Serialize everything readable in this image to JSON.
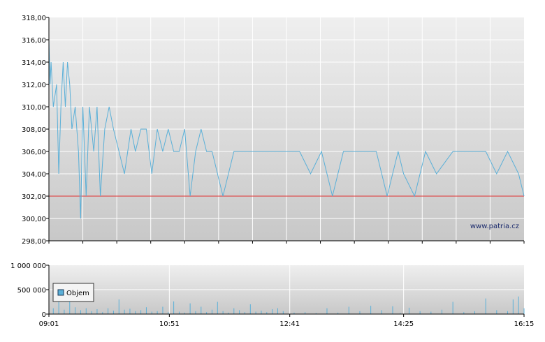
{
  "watermark": "www.patria.cz",
  "legend": {
    "label": "Objem"
  },
  "colors": {
    "price_line": "#5bb0d8",
    "reference_line": "#e03030",
    "volume_bar": "#5bb0d8",
    "grid": "#ffffff",
    "axis": "#000000"
  },
  "chart_data": [
    {
      "type": "line",
      "title": "",
      "xlabel": "",
      "ylabel": "",
      "ylim": [
        298,
        318
      ],
      "y_ticks": [
        "318,00",
        "316,00",
        "314,00",
        "312,00",
        "310,00",
        "308,00",
        "306,00",
        "304,00",
        "302,00",
        "300,00",
        "298,00"
      ],
      "reference_line": 302,
      "grid": true,
      "series": [
        {
          "x": [
            "09:01",
            "09:02",
            "09:03",
            "09:05",
            "09:08",
            "09:10",
            "09:12",
            "09:14",
            "09:16",
            "09:18",
            "09:20",
            "09:22",
            "09:25",
            "09:28",
            "09:30",
            "09:32",
            "09:35",
            "09:38",
            "09:42",
            "09:45",
            "09:48",
            "09:52",
            "09:56",
            "10:00",
            "10:05",
            "10:10",
            "10:16",
            "10:20",
            "10:25",
            "10:30",
            "10:35",
            "10:40",
            "10:45",
            "10:50",
            "10:55",
            "11:00",
            "11:05",
            "11:10",
            "11:15",
            "11:20",
            "11:25",
            "11:30",
            "11:40",
            "11:50",
            "12:00",
            "12:10",
            "12:20",
            "12:30",
            "12:40",
            "12:50",
            "13:00",
            "13:10",
            "13:20",
            "13:30",
            "13:40",
            "13:50",
            "14:00",
            "14:10",
            "14:20",
            "14:25",
            "14:35",
            "14:45",
            "14:55",
            "15:10",
            "15:25",
            "15:40",
            "15:50",
            "16:00",
            "16:10",
            "16:15"
          ],
          "y": [
            316,
            312,
            314,
            310,
            312,
            304,
            310,
            314,
            310,
            314,
            312,
            308,
            310,
            306,
            300,
            310,
            302,
            310,
            306,
            310,
            302,
            308,
            310,
            308,
            306,
            304,
            308,
            306,
            308,
            308,
            304,
            308,
            306,
            308,
            306,
            306,
            308,
            302,
            306,
            308,
            306,
            306,
            302,
            306,
            306,
            306,
            306,
            306,
            306,
            306,
            304,
            306,
            302,
            306,
            306,
            306,
            306,
            302,
            306,
            304,
            302,
            306,
            304,
            306,
            306,
            306,
            304,
            306,
            304,
            302
          ]
        }
      ]
    },
    {
      "type": "bar",
      "title": "",
      "xlabel": "",
      "ylabel": "",
      "ylim": [
        0,
        1000000
      ],
      "y_ticks": [
        "1 000 000",
        "500 000",
        "0"
      ],
      "x_ticks": [
        "09:01",
        "10:51",
        "12:41",
        "14:25",
        "16:15"
      ],
      "grid": true,
      "series": [
        {
          "name": "Objem",
          "x": [
            "09:01",
            "09:05",
            "09:10",
            "09:15",
            "09:20",
            "09:25",
            "09:30",
            "09:35",
            "09:40",
            "09:45",
            "09:50",
            "09:55",
            "10:00",
            "10:05",
            "10:10",
            "10:15",
            "10:20",
            "10:25",
            "10:30",
            "10:35",
            "10:40",
            "10:45",
            "10:50",
            "10:55",
            "11:00",
            "11:05",
            "11:10",
            "11:15",
            "11:20",
            "11:25",
            "11:30",
            "11:35",
            "11:40",
            "11:45",
            "11:50",
            "11:55",
            "12:00",
            "12:05",
            "12:10",
            "12:15",
            "12:20",
            "12:25",
            "12:30",
            "12:35",
            "12:45",
            "12:55",
            "13:05",
            "13:15",
            "13:25",
            "13:35",
            "13:45",
            "13:55",
            "14:05",
            "14:15",
            "14:22",
            "14:30",
            "14:40",
            "14:50",
            "15:00",
            "15:10",
            "15:20",
            "15:30",
            "15:40",
            "15:50",
            "16:00",
            "16:05",
            "16:10",
            "16:15"
          ],
          "values": [
            180000,
            120000,
            350000,
            90000,
            260000,
            140000,
            80000,
            120000,
            60000,
            100000,
            40000,
            120000,
            70000,
            300000,
            90000,
            110000,
            60000,
            80000,
            140000,
            50000,
            60000,
            150000,
            40000,
            260000,
            50000,
            30000,
            220000,
            60000,
            150000,
            40000,
            90000,
            250000,
            60000,
            30000,
            120000,
            80000,
            40000,
            200000,
            50000,
            70000,
            40000,
            100000,
            120000,
            60000,
            30000,
            40000,
            20000,
            120000,
            30000,
            150000,
            60000,
            170000,
            80000,
            160000,
            20000,
            130000,
            60000,
            50000,
            90000,
            250000,
            40000,
            60000,
            320000,
            80000,
            60000,
            300000,
            360000,
            120000
          ]
        }
      ]
    }
  ]
}
